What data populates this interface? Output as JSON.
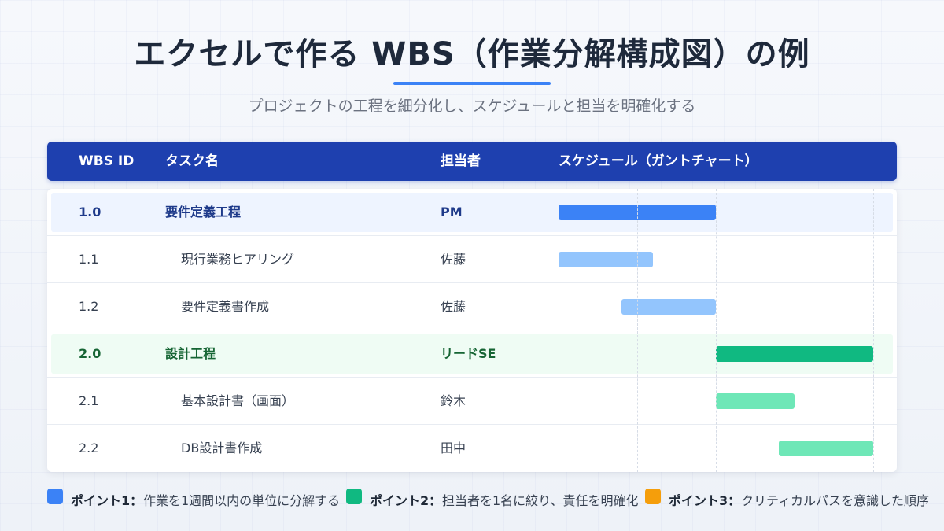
{
  "title": "エクセルで作る WBS（作業分解構成図）の例",
  "subtitle": "プロジェクトの工程を細分化し、スケジュールと担当を明確化する",
  "header": {
    "wbs_id": "WBS ID",
    "task": "タスク名",
    "owner": "担当者",
    "schedule": "スケジュール（ガントチャート）"
  },
  "colors": {
    "header_bg": "#1e40af",
    "phase1_bar": "#3b82f6",
    "phase1_sub_bar": "#93c5fd",
    "phase2_bar": "#10b981",
    "phase2_sub_bar": "#6ee7b7",
    "phase1_row_bg": "#eef4ff",
    "phase2_row_bg": "#effcf4",
    "point3": "#f59e0b"
  },
  "gantt": {
    "periods": 4
  },
  "rows": [
    {
      "id": "1.0",
      "task": "要件定義工程",
      "owner": "PM",
      "level": "phase",
      "phase": 1,
      "start": 0,
      "end": 2
    },
    {
      "id": "1.1",
      "task": "現行業務ヒアリング",
      "owner": "佐藤",
      "level": "task",
      "phase": 1,
      "start": 0,
      "end": 1.2
    },
    {
      "id": "1.2",
      "task": "要件定義書作成",
      "owner": "佐藤",
      "level": "task",
      "phase": 1,
      "start": 0.8,
      "end": 2
    },
    {
      "id": "2.0",
      "task": "設計工程",
      "owner": "リードSE",
      "level": "phase",
      "phase": 2,
      "start": 2,
      "end": 4
    },
    {
      "id": "2.1",
      "task": "基本設計書（画面）",
      "owner": "鈴木",
      "level": "task",
      "phase": 2,
      "start": 2,
      "end": 3
    },
    {
      "id": "2.2",
      "task": "DB設計書作成",
      "owner": "田中",
      "level": "task",
      "phase": 2,
      "start": 2.8,
      "end": 4
    }
  ],
  "points": [
    {
      "label": "ポイント1：",
      "text": "作業を1週間以内の単位に分解する",
      "color": "#3b82f6"
    },
    {
      "label": "ポイント2：",
      "text": "担当者を1名に絞り、責任を明確化",
      "color": "#10b981"
    },
    {
      "label": "ポイント3：",
      "text": "クリティカルパスを意識した順序",
      "color": "#f59e0b"
    }
  ]
}
